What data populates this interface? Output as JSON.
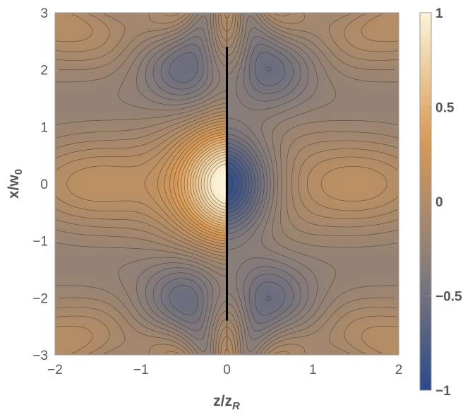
{
  "chart_data": {
    "type": "heatmap",
    "subtype": "contour density plot",
    "title": "",
    "xlabel": "z/z",
    "xlabel_sub": "R",
    "ylabel": "x/w",
    "ylabel_sub": "0",
    "xlim": [
      -2,
      2
    ],
    "ylim": [
      -3,
      3
    ],
    "x_ticks": [
      -2,
      -1,
      0,
      1,
      2
    ],
    "y_ticks": [
      -3,
      -2,
      -1,
      0,
      1,
      2,
      3
    ],
    "x_tick_labels": [
      "−2",
      "−1",
      "0",
      "1",
      "2"
    ],
    "y_tick_labels": [
      "−3",
      "−2",
      "−1",
      "0",
      "1",
      "2",
      "3"
    ],
    "colorbar": {
      "range": [
        -1,
        1
      ],
      "ticks": [
        -1,
        -0.5,
        0,
        0.5,
        1
      ],
      "tick_labels": [
        "−1",
        "−0.5",
        "0",
        "0.5",
        "1"
      ],
      "placement": "right",
      "colors": [
        "#2a4a8a",
        "#8a7e7a",
        "#d99a55",
        "#fbf4d8"
      ]
    },
    "features": {
      "max_at": [
        0,
        0
      ],
      "min_at": [
        0.1,
        0
      ],
      "discontinuity_line_z": 0
    }
  }
}
